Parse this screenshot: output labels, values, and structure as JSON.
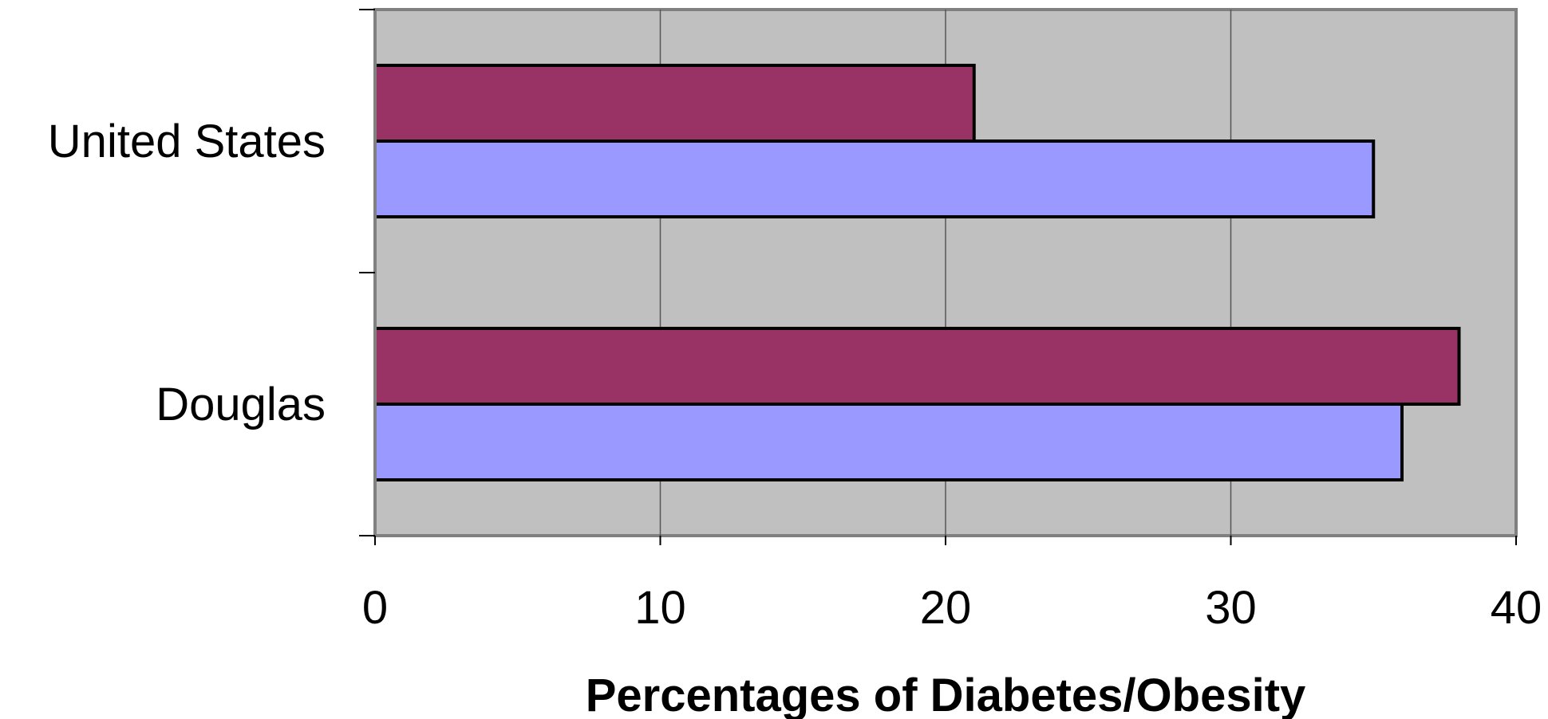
{
  "chart_data": {
    "type": "bar",
    "orientation": "horizontal",
    "categories": [
      "United States",
      "Douglas"
    ],
    "series": [
      {
        "values": [
          21,
          38
        ],
        "color": "#993366"
      },
      {
        "values": [
          35,
          36
        ],
        "color": "#9999ff"
      }
    ],
    "xlim": [
      0,
      40
    ],
    "xticks": [
      0,
      10,
      20,
      30,
      40
    ],
    "xlabel": "Percentages of Diabetes/Obesity",
    "ylabel": "",
    "title": "",
    "grid": "vertical",
    "plot_background": "#c0c0c0",
    "legend": "none"
  }
}
